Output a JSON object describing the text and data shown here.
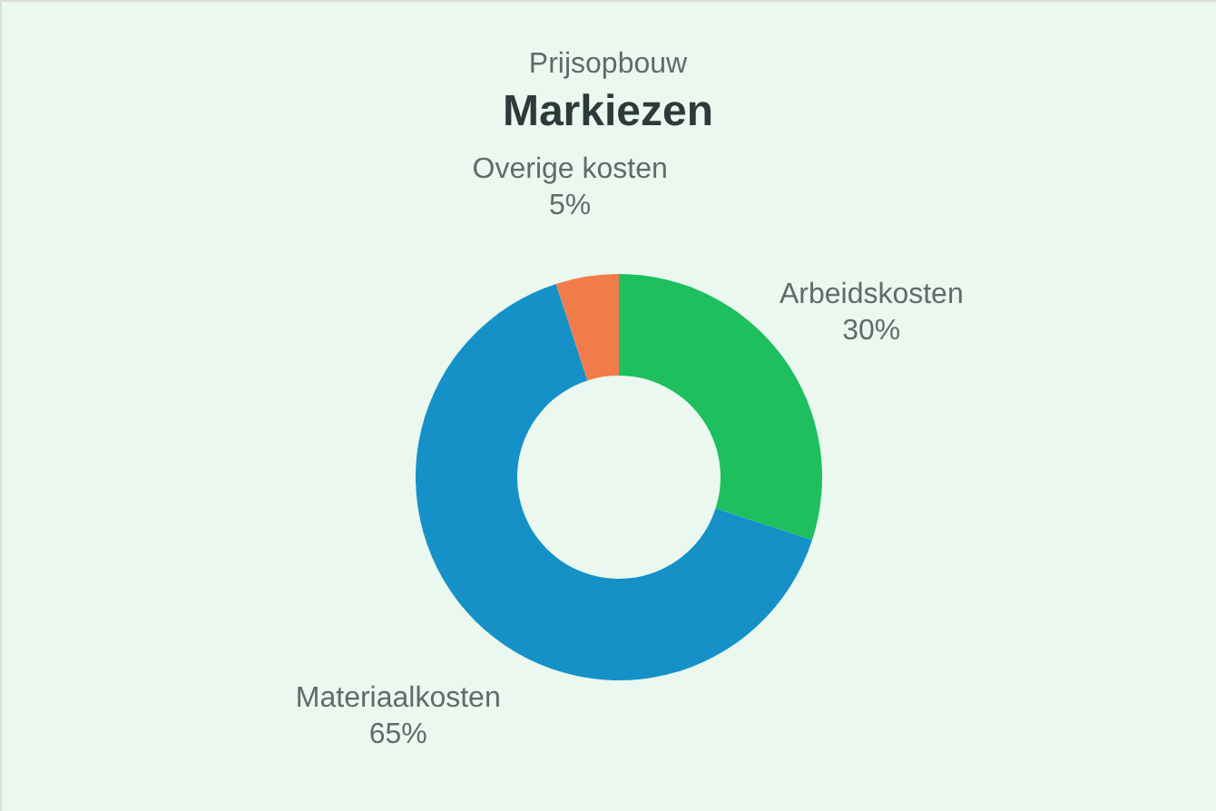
{
  "chart_data": {
    "type": "donut",
    "title": "Markiezen",
    "subtitle": "Prijsopbouw",
    "categories": [
      "Arbeidskosten",
      "Materiaalkosten",
      "Overige kosten"
    ],
    "values": [
      30,
      65,
      5
    ],
    "colors": [
      "#1dbf5e",
      "#1591c8",
      "#f07c4a"
    ],
    "value_labels": [
      "30%",
      "65%",
      "5%"
    ]
  }
}
